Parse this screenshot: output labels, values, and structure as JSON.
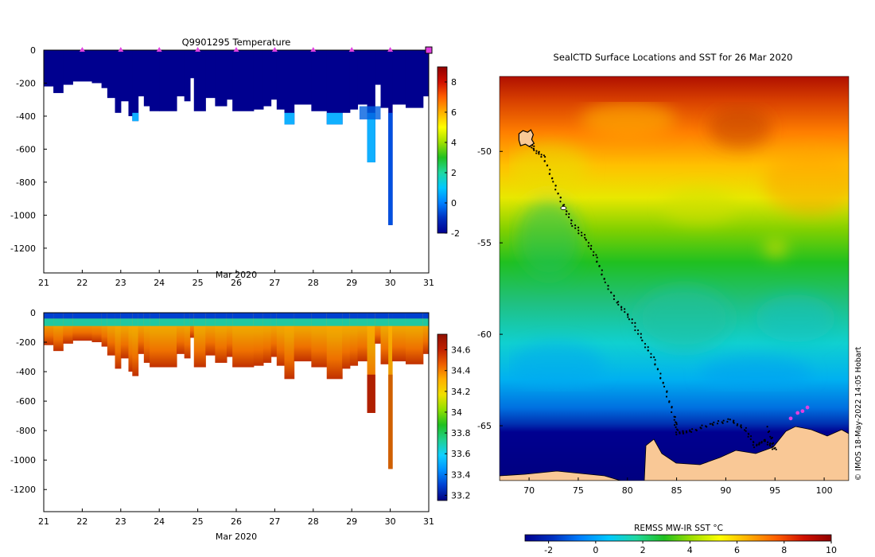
{
  "colors": {
    "temp_cmap": [
      "#00008f",
      "#0030c0",
      "#0080ff",
      "#00c8ff",
      "#20d8a0",
      "#20c020",
      "#a0e000",
      "#ffff00",
      "#ffb000",
      "#ff6000",
      "#d01000",
      "#900000"
    ],
    "sal_cmap": [
      "#000080",
      "#0040d0",
      "#0090ff",
      "#10d0ff",
      "#20d090",
      "#20c020",
      "#90e000",
      "#f0e000",
      "#ffb000",
      "#ee6000",
      "#c02000",
      "#901000"
    ],
    "land": "#f9c896",
    "marker": "#e040e0"
  },
  "chart_data": [
    {
      "type": "heatmap",
      "title": "Q9901295  Temperature",
      "xlabel": "Mar 2020",
      "ylabel": "",
      "xlim": [
        21,
        31
      ],
      "ylim": [
        -1350,
        0
      ],
      "x_ticks": [
        21,
        22,
        23,
        24,
        25,
        26,
        27,
        28,
        29,
        30,
        31
      ],
      "y_ticks": [
        0,
        -200,
        -400,
        -600,
        -800,
        -1000,
        -1200
      ],
      "profile_markers_x": [
        22,
        23,
        24,
        25,
        26,
        27,
        28,
        29,
        30,
        31
      ],
      "colorbar": {
        "ticks": [
          -2,
          0,
          2,
          4,
          6,
          8
        ],
        "range": [
          -2,
          9
        ]
      },
      "profile_depths": [
        [
          21.0,
          21.25,
          -220
        ],
        [
          21.25,
          21.5,
          -260
        ],
        [
          21.5,
          21.75,
          -210
        ],
        [
          21.75,
          22.25,
          -190
        ],
        [
          22.25,
          22.5,
          -200
        ],
        [
          22.5,
          22.65,
          -230
        ],
        [
          22.65,
          22.85,
          -290
        ],
        [
          22.85,
          23.0,
          -380
        ],
        [
          23.0,
          23.2,
          -310
        ],
        [
          23.2,
          23.3,
          -400
        ],
        [
          23.3,
          23.45,
          -430
        ],
        [
          23.45,
          23.6,
          -280
        ],
        [
          23.6,
          23.75,
          -340
        ],
        [
          23.75,
          24.0,
          -370
        ],
        [
          24.0,
          24.45,
          -370
        ],
        [
          24.45,
          24.65,
          -280
        ],
        [
          24.65,
          24.8,
          -310
        ],
        [
          24.8,
          24.9,
          -170
        ],
        [
          24.9,
          25.2,
          -370
        ],
        [
          25.2,
          25.45,
          -290
        ],
        [
          25.45,
          25.75,
          -340
        ],
        [
          25.75,
          25.9,
          -300
        ],
        [
          25.9,
          26.45,
          -370
        ],
        [
          26.45,
          26.7,
          -360
        ],
        [
          26.7,
          26.9,
          -340
        ],
        [
          26.9,
          27.05,
          -300
        ],
        [
          27.05,
          27.25,
          -360
        ],
        [
          27.25,
          27.5,
          -450
        ],
        [
          27.5,
          27.95,
          -330
        ],
        [
          27.95,
          28.35,
          -370
        ],
        [
          28.35,
          28.75,
          -450
        ],
        [
          28.75,
          28.95,
          -380
        ],
        [
          28.95,
          29.15,
          -360
        ],
        [
          29.15,
          29.4,
          -330
        ],
        [
          29.4,
          29.6,
          -680
        ],
        [
          29.6,
          29.75,
          -210
        ],
        [
          29.75,
          29.95,
          -350
        ],
        [
          29.95,
          30.05,
          -1060
        ],
        [
          30.05,
          30.4,
          -330
        ],
        [
          30.4,
          30.85,
          -350
        ],
        [
          30.85,
          31.0,
          -280
        ]
      ]
    },
    {
      "type": "heatmap",
      "title": "",
      "xlabel": "Mar 2020",
      "ylabel": "",
      "xlim": [
        21,
        31
      ],
      "ylim": [
        -1350,
        0
      ],
      "x_ticks": [
        21,
        22,
        23,
        24,
        25,
        26,
        27,
        28,
        29,
        30,
        31
      ],
      "y_ticks": [
        0,
        -200,
        -400,
        -600,
        -800,
        -1000,
        -1200
      ],
      "colorbar": {
        "ticks": [
          33.2,
          33.4,
          33.6,
          33.8,
          34,
          34.2,
          34.4,
          34.6
        ],
        "tick_labels": [
          "33.2",
          "33.4",
          "33.6",
          "33.8",
          "34",
          "34.2",
          "34.4",
          "34.6"
        ],
        "range": [
          33.15,
          34.75
        ]
      }
    },
    {
      "type": "heatmap",
      "title": "SealCTD Surface Locations and SST for 26 Mar 2020",
      "xlabel": "",
      "ylabel": "",
      "xlim": [
        67,
        102.5
      ],
      "ylim": [
        -68,
        -45.9
      ],
      "x_ticks": [
        70,
        75,
        80,
        85,
        90,
        95,
        100
      ],
      "y_ticks": [
        -50,
        -55,
        -60,
        -65
      ],
      "colorbar": {
        "label": "REMSS MW-IR SST °C",
        "ticks": [
          -2,
          0,
          2,
          4,
          6,
          8,
          10
        ],
        "range": [
          -3,
          10
        ]
      },
      "track": [
        [
          69.9,
          -49.4
        ],
        [
          70.5,
          -49.9
        ],
        [
          71.5,
          -50.3
        ],
        [
          72.5,
          -51.7
        ],
        [
          73.5,
          -53.0
        ],
        [
          74.5,
          -54.0
        ],
        [
          75.8,
          -54.8
        ],
        [
          76.8,
          -55.8
        ],
        [
          77.8,
          -57.2
        ],
        [
          79.0,
          -58.3
        ],
        [
          80.3,
          -59.1
        ],
        [
          81.5,
          -60.3
        ],
        [
          82.7,
          -61.4
        ],
        [
          83.8,
          -62.9
        ],
        [
          84.8,
          -64.6
        ],
        [
          85.1,
          -65.4
        ],
        [
          86.5,
          -65.3
        ],
        [
          88.5,
          -64.9
        ],
        [
          90.5,
          -64.7
        ],
        [
          92.0,
          -65.2
        ],
        [
          93.0,
          -66.1
        ],
        [
          94.0,
          -65.8
        ],
        [
          95.0,
          -66.3
        ],
        [
          94.2,
          -65.0
        ]
      ],
      "recent_positions": [
        [
          96.6,
          -64.6
        ],
        [
          97.3,
          -64.3
        ],
        [
          97.8,
          -64.2
        ],
        [
          98.3,
          -64.0
        ]
      ],
      "kerguelen": [
        69.7,
        -49.3
      ],
      "heard": [
        73.5,
        -53.1
      ]
    }
  ],
  "credit": "© IMOS 18-May-2022 14:05 Hobart"
}
